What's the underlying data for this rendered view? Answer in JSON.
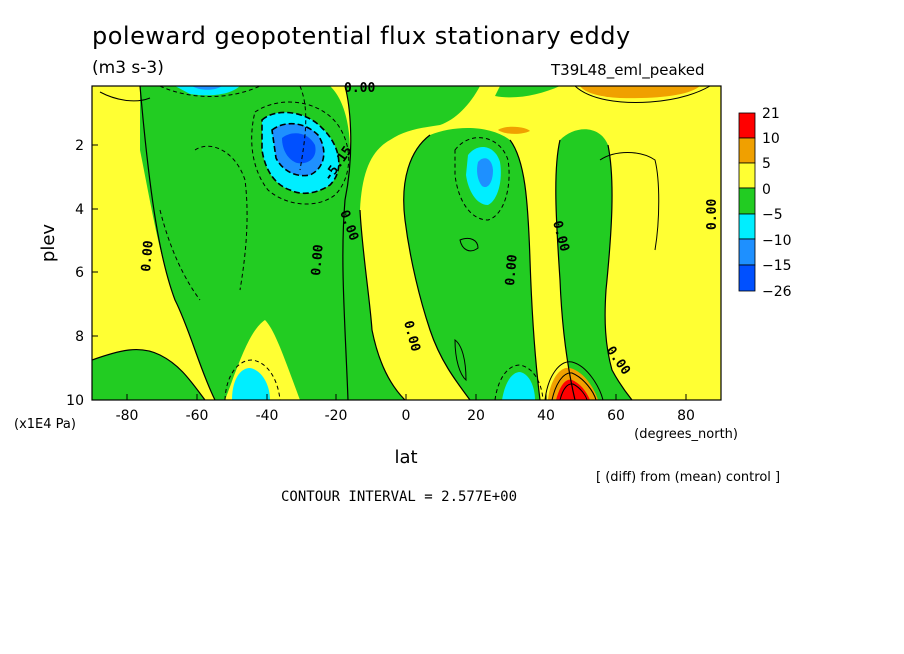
{
  "title": "poleward geopotential flux stationary eddy",
  "units": "(m3 s-3)",
  "experiment": "T39L48_eml_peaked",
  "chart_data": {
    "type": "heatmap",
    "subtype": "filled-contour",
    "xlabel": "lat",
    "xunits": "(degrees_north)",
    "ylabel": "plev",
    "yunits": "(x1E4 Pa)",
    "xlim": [
      -90,
      90
    ],
    "ylim": [
      10,
      0.1
    ],
    "x_ticks": [
      -80,
      -60,
      -40,
      -20,
      0,
      20,
      40,
      60,
      80
    ],
    "x_tick_labels": [
      "-80",
      "-60",
      "-40",
      "-20",
      "0",
      "20",
      "40",
      "60",
      "80"
    ],
    "y_ticks": [
      2,
      4,
      6,
      8,
      10
    ],
    "y_tick_labels": [
      "2",
      "4",
      "6",
      "8",
      "10"
    ],
    "colorbar": {
      "labels": [
        "21",
        "10",
        "5",
        "0",
        "−5",
        "−10",
        "−15",
        "−26"
      ],
      "colors": [
        "#ff0000",
        "#f0a000",
        "#ffff33",
        "#22cc22",
        "#00eeff",
        "#1e90ff",
        "#0050ff"
      ]
    },
    "contour_labels": [
      "0.00",
      "0.00",
      "0.00",
      "0.00",
      "0.00",
      "0.00",
      "0.00",
      "0.00",
      "0.00",
      "-5.15"
    ],
    "features": [
      {
        "name": "subtropical negative max",
        "lat": -32,
        "plev": 2,
        "value": -26
      },
      {
        "name": "tropical negative",
        "lat": 22,
        "plev": 2.7,
        "value": -10
      },
      {
        "name": "surface positive max",
        "lat": 45,
        "plev": 9.8,
        "value": 21
      },
      {
        "name": "upper positive",
        "lat": 58,
        "plev": 0.2,
        "value": 10
      }
    ]
  },
  "footer": {
    "note": "[ (diff) from (mean) control ]",
    "contour_interval": "CONTOUR INTERVAL = 2.577E+00"
  }
}
